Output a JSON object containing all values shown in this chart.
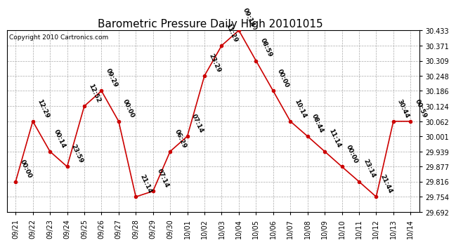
{
  "title": "Barometric Pressure Daily High 20101015",
  "copyright": "Copyright 2010 Cartronics.com",
  "x_labels": [
    "09/21",
    "09/22",
    "09/23",
    "09/24",
    "09/25",
    "09/26",
    "09/27",
    "09/28",
    "09/29",
    "09/30",
    "10/01",
    "10/02",
    "10/03",
    "10/04",
    "10/05",
    "10/06",
    "10/07",
    "10/08",
    "10/09",
    "10/10",
    "10/11",
    "10/12",
    "10/13",
    "10/14"
  ],
  "y_values": [
    29.816,
    30.062,
    29.939,
    29.877,
    30.124,
    30.186,
    30.062,
    29.754,
    29.777,
    29.939,
    30.001,
    30.248,
    30.371,
    30.433,
    30.309,
    30.186,
    30.062,
    30.001,
    29.939,
    29.877,
    29.816,
    29.754,
    30.062,
    30.062
  ],
  "point_labels": [
    "00:00",
    "12:29",
    "00:14",
    "23:59",
    "12:52",
    "09:29",
    "00:00",
    "21:14",
    "07:14",
    "06:29",
    "07:14",
    "23:29",
    "11:29",
    "09:14",
    "08:59",
    "00:00",
    "10:14",
    "08:44",
    "11:14",
    "00:00",
    "23:14",
    "21:44",
    "30:44",
    "00:59"
  ],
  "ylim_min": 29.692,
  "ylim_max": 30.433,
  "yticks": [
    29.692,
    29.754,
    29.816,
    29.877,
    29.939,
    30.001,
    30.062,
    30.124,
    30.186,
    30.248,
    30.309,
    30.371,
    30.433
  ],
  "line_color": "#cc0000",
  "marker_color": "#cc0000",
  "background_color": "#ffffff",
  "grid_color": "#aaaaaa",
  "title_fontsize": 11,
  "tick_fontsize": 7,
  "annotation_fontsize": 6.5
}
